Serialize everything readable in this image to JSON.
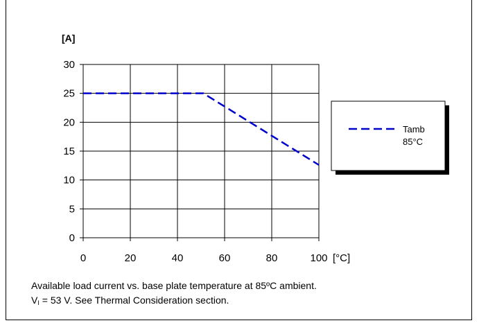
{
  "chart_data": {
    "type": "line",
    "y_unit": "[A]",
    "x_unit": "[°C]",
    "xlim": [
      0,
      100
    ],
    "ylim": [
      0,
      30
    ],
    "x_ticks": [
      "0",
      "20",
      "40",
      "60",
      "80",
      "100"
    ],
    "y_ticks": [
      "0",
      "5",
      "10",
      "15",
      "20",
      "25",
      "30"
    ],
    "grid": true,
    "legend_position": "right",
    "series": [
      {
        "name_line1": "Tamb",
        "name_line2": "85°C",
        "color": "#0000cc",
        "style": "dashed",
        "x": [
          0,
          51,
          100
        ],
        "y": [
          25,
          25,
          12.6
        ]
      }
    ]
  },
  "caption": {
    "line1": "Available load current vs. base plate temperature at 85ºC ambient.",
    "line2_prefix": "V",
    "line2_sub": "I",
    "line2_rest": " = 53 V. See Thermal Consideration section."
  }
}
